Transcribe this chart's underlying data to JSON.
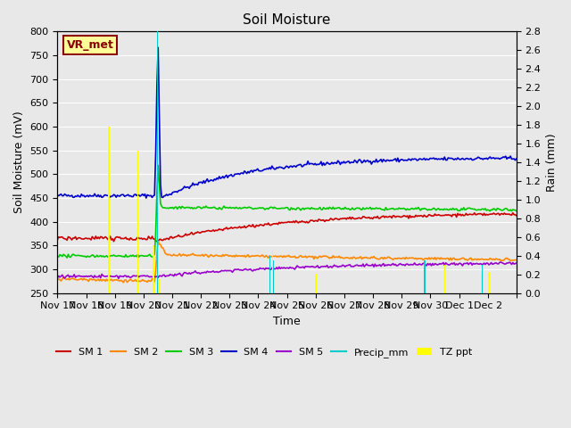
{
  "title": "Soil Moisture",
  "ylabel_left": "Soil Moisture (mV)",
  "ylabel_right": "Rain (mm)",
  "xlabel": "Time",
  "ylim_left": [
    250,
    800
  ],
  "ylim_right": [
    0.0,
    2.8
  ],
  "yticks_left": [
    250,
    300,
    350,
    400,
    450,
    500,
    550,
    600,
    650,
    700,
    750,
    800
  ],
  "yticks_right": [
    0.0,
    0.2,
    0.4,
    0.6,
    0.8,
    1.0,
    1.2,
    1.4,
    1.6,
    1.8,
    2.0,
    2.2,
    2.4,
    2.6,
    2.8
  ],
  "background_color": "#e8e8e8",
  "plot_bg_color": "#e8e8e8",
  "station_label": "VR_met",
  "sm1_color": "#cc0000",
  "sm2_color": "#ff8800",
  "sm3_color": "#00cc00",
  "sm4_color": "#0000cc",
  "sm5_color": "#9900cc",
  "precip_color": "#00cccc",
  "tzppt_color": "#ffff00",
  "grid_color": "#ffffff",
  "n_days": 16
}
